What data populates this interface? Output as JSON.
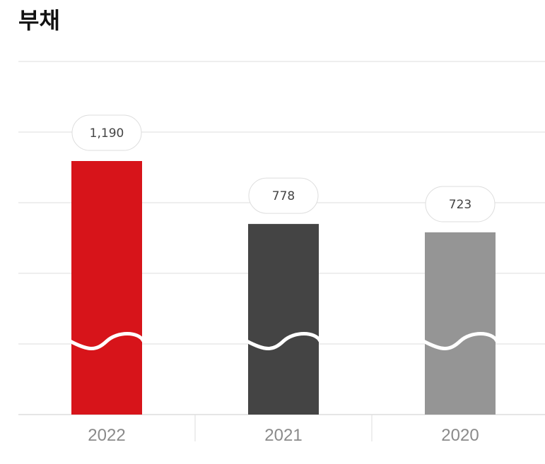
{
  "title": "부채",
  "chart_data": {
    "type": "bar",
    "title": "부채",
    "categories": [
      "2022",
      "2021",
      "2020"
    ],
    "values": [
      1190,
      778,
      723
    ],
    "value_labels": [
      "1,190",
      "778",
      "723"
    ],
    "colors": [
      "#d7141a",
      "#444444",
      "#959595"
    ],
    "axis_break": true,
    "grid": true,
    "xlabel": "",
    "ylabel": ""
  }
}
